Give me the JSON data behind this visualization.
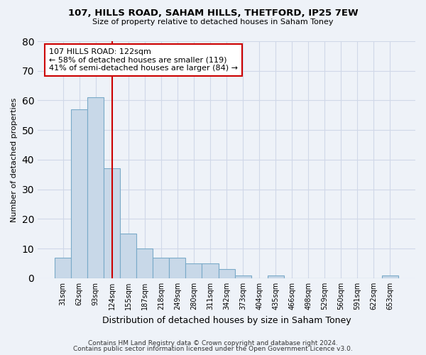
{
  "title1": "107, HILLS ROAD, SAHAM HILLS, THETFORD, IP25 7EW",
  "title2": "Size of property relative to detached houses in Saham Toney",
  "xlabel": "Distribution of detached houses by size in Saham Toney",
  "ylabel": "Number of detached properties",
  "categories": [
    "31sqm",
    "62sqm",
    "93sqm",
    "124sqm",
    "155sqm",
    "187sqm",
    "218sqm",
    "249sqm",
    "280sqm",
    "311sqm",
    "342sqm",
    "373sqm",
    "404sqm",
    "435sqm",
    "466sqm",
    "498sqm",
    "529sqm",
    "560sqm",
    "591sqm",
    "622sqm",
    "653sqm"
  ],
  "values": [
    7,
    57,
    61,
    37,
    15,
    10,
    7,
    7,
    5,
    5,
    3,
    1,
    0,
    1,
    0,
    0,
    0,
    0,
    0,
    0,
    1
  ],
  "bar_color": "#c8d8e8",
  "bar_edgecolor": "#7aaac8",
  "bar_linewidth": 0.8,
  "redline_index": 3,
  "redline_color": "#cc0000",
  "annotation_line1": "107 HILLS ROAD: 122sqm",
  "annotation_line2": "← 58% of detached houses are smaller (119)",
  "annotation_line3": "41% of semi-detached houses are larger (84) →",
  "annotation_box_color": "#ffffff",
  "annotation_box_edgecolor": "#cc0000",
  "ylim": [
    0,
    80
  ],
  "yticks": [
    0,
    10,
    20,
    30,
    40,
    50,
    60,
    70,
    80
  ],
  "grid_color": "#d0d8e8",
  "background_color": "#eef2f8",
  "footer_line1": "Contains HM Land Registry data © Crown copyright and database right 2024.",
  "footer_line2": "Contains public sector information licensed under the Open Government Licence v3.0."
}
